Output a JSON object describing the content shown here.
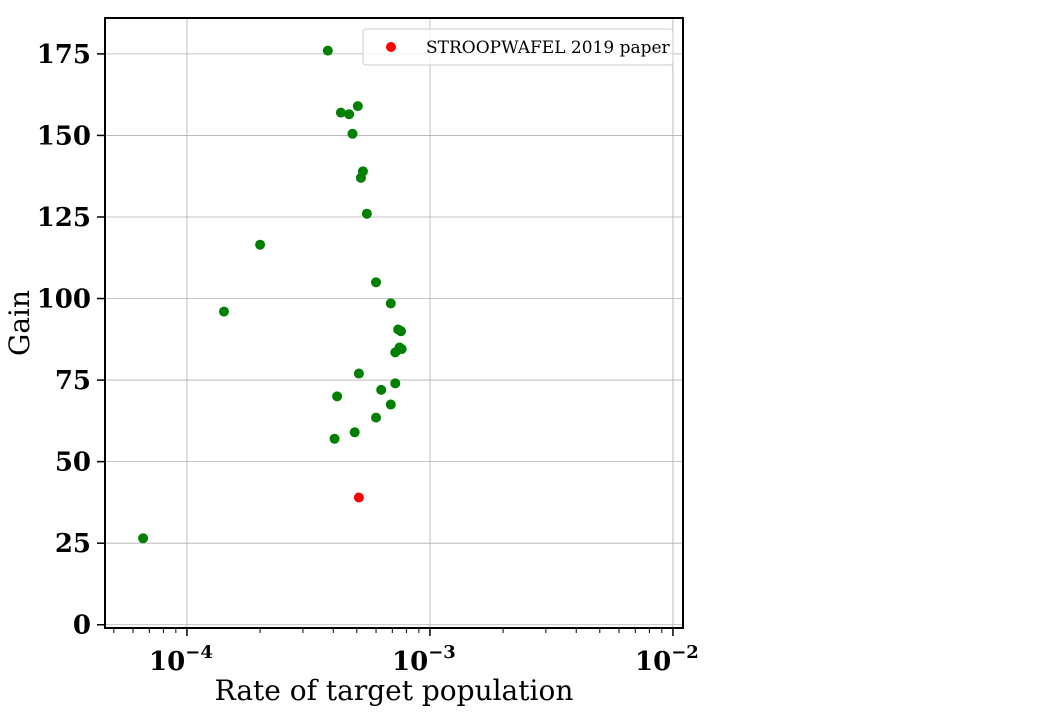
{
  "chart_data": {
    "type": "scatter",
    "xscale": "log",
    "xlim": [
      4.6e-05,
      0.011
    ],
    "ylim": [
      -1,
      186
    ],
    "xlabel": "Rate of target population",
    "ylabel": "Gain",
    "grid": true,
    "legend_position": "top-right",
    "x_tick_labels": [
      {
        "value": 0.0001,
        "base": "10",
        "exp": "−4"
      },
      {
        "value": 0.001,
        "base": "10",
        "exp": "−3"
      },
      {
        "value": 0.01,
        "base": "10",
        "exp": "−2"
      }
    ],
    "y_ticks": [
      0,
      25,
      50,
      75,
      100,
      125,
      150,
      175
    ],
    "y_tick_labels": [
      "0",
      "25",
      "50",
      "75",
      "100",
      "125",
      "150",
      "175"
    ],
    "series": [
      {
        "color": "#008000",
        "points": [
          {
            "x": 6.6e-05,
            "y": 26.5
          },
          {
            "x": 0.000142,
            "y": 96
          },
          {
            "x": 0.0002,
            "y": 116.5
          },
          {
            "x": 0.00038,
            "y": 176
          },
          {
            "x": 0.000405,
            "y": 57
          },
          {
            "x": 0.000415,
            "y": 70
          },
          {
            "x": 0.00043,
            "y": 157
          },
          {
            "x": 0.000465,
            "y": 156.5
          },
          {
            "x": 0.00048,
            "y": 150.5
          },
          {
            "x": 0.00049,
            "y": 59
          },
          {
            "x": 0.000505,
            "y": 159
          },
          {
            "x": 0.00051,
            "y": 77
          },
          {
            "x": 0.00052,
            "y": 137
          },
          {
            "x": 0.00053,
            "y": 139
          },
          {
            "x": 0.00055,
            "y": 126
          },
          {
            "x": 0.0006,
            "y": 105
          },
          {
            "x": 0.0006,
            "y": 63.5
          },
          {
            "x": 0.00063,
            "y": 72
          },
          {
            "x": 0.00069,
            "y": 98.5
          },
          {
            "x": 0.00069,
            "y": 67.5
          },
          {
            "x": 0.00072,
            "y": 74
          },
          {
            "x": 0.00072,
            "y": 83.5
          },
          {
            "x": 0.00074,
            "y": 90.5
          },
          {
            "x": 0.00075,
            "y": 85
          },
          {
            "x": 0.00076,
            "y": 90
          },
          {
            "x": 0.000765,
            "y": 84.5
          }
        ]
      },
      {
        "name": "STROOPWAFEL 2019 paper",
        "color": "#ff0000",
        "points": [
          {
            "x": 0.00051,
            "y": 39
          }
        ]
      }
    ]
  }
}
